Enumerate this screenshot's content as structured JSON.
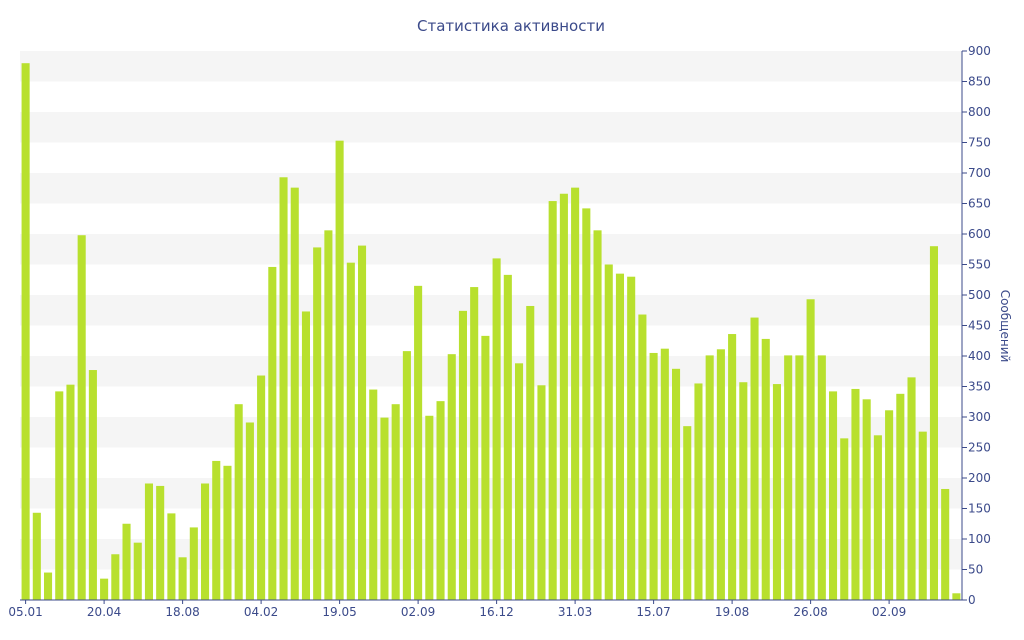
{
  "chart_data": {
    "type": "bar",
    "title": "Статистика активности",
    "ylabel": "Сообщений",
    "xlabel": "",
    "ylim": [
      0,
      900
    ],
    "y_ticks": [
      0,
      50,
      100,
      150,
      200,
      250,
      300,
      350,
      400,
      450,
      500,
      550,
      600,
      650,
      700,
      750,
      800,
      850,
      900
    ],
    "y_axis_side": "right",
    "grid": "alternating-horizontal-bands",
    "bar_color": "#b8e02e",
    "band_color": "#f5f5f5",
    "text_color": "#3b4a8a",
    "x_tick_labels": [
      {
        "index": 0,
        "label": "05.01"
      },
      {
        "index": 7,
        "label": "20.04"
      },
      {
        "index": 14,
        "label": "18.08"
      },
      {
        "index": 21,
        "label": "04.02"
      },
      {
        "index": 28,
        "label": "19.05"
      },
      {
        "index": 35,
        "label": "02.09"
      },
      {
        "index": 42,
        "label": "16.12"
      },
      {
        "index": 49,
        "label": "31.03"
      },
      {
        "index": 56,
        "label": "15.07"
      },
      {
        "index": 63,
        "label": "19.08"
      },
      {
        "index": 70,
        "label": "26.08"
      },
      {
        "index": 77,
        "label": "02.09"
      }
    ],
    "values": [
      880,
      143,
      45,
      342,
      353,
      598,
      377,
      35,
      75,
      125,
      94,
      191,
      187,
      142,
      70,
      119,
      191,
      228,
      220,
      321,
      291,
      368,
      546,
      693,
      676,
      473,
      578,
      606,
      753,
      553,
      581,
      345,
      299,
      321,
      408,
      515,
      302,
      326,
      403,
      474,
      513,
      433,
      560,
      533,
      388,
      482,
      352,
      654,
      666,
      676,
      642,
      606,
      550,
      535,
      530,
      468,
      405,
      412,
      379,
      285,
      355,
      401,
      411,
      436,
      357,
      463,
      428,
      354,
      401,
      401,
      493,
      401,
      342,
      265,
      346,
      329,
      270,
      311,
      338,
      365,
      276,
      580,
      182,
      11
    ]
  }
}
